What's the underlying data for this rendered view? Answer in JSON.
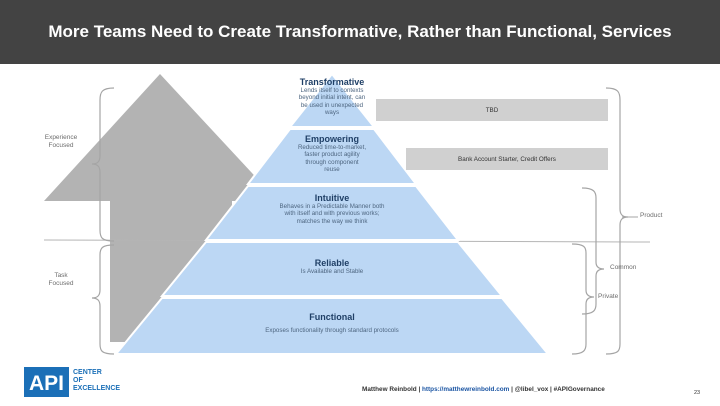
{
  "header": {
    "title": "More Teams Need to Create Transformative, Rather than Functional, Services"
  },
  "pyramid": {
    "levels": [
      {
        "title": "Transformative",
        "description": [
          "Lends itself to contexts",
          "beyond initial intent, can",
          "be used in unexpected",
          "ways"
        ]
      },
      {
        "title": "Empowering",
        "description": [
          "Reduced time-to-market,",
          "faster product agility",
          "through component",
          "reuse"
        ]
      },
      {
        "title": "Intuitive",
        "description": [
          "Behaves in a Predictable Manner both",
          "with itself and with previous works;",
          "matches the way we think"
        ]
      },
      {
        "title": "Reliable",
        "description": [
          "Is Available and Stable"
        ]
      },
      {
        "title": "Functional",
        "description": [
          "Exposes  functionality through standard protocols"
        ]
      }
    ]
  },
  "boxes": {
    "tbd": "TBD",
    "bank": "Bank Account Starter, Credit Offers"
  },
  "left_labels": {
    "experience": [
      "Experience",
      "Focused"
    ],
    "task": [
      "Task",
      "Focused"
    ]
  },
  "right_labels": {
    "product": "Product",
    "common": "Common",
    "private": "Private"
  },
  "footer": {
    "author": "Matthew Reinbold | ",
    "url": "https://matthewreinbold.com",
    "rest": " | @libel_vox | #APIGovernance",
    "page": "23"
  },
  "logo": {
    "mark": "API",
    "lines": [
      "CENTER",
      "OF",
      "EXCELLENCE"
    ]
  },
  "colors": {
    "title_bar": "#434343",
    "pyramid_fill": "#bcd7f4",
    "gray_box": "#d0d0d0",
    "logo_blue": "#1b6fb7"
  }
}
